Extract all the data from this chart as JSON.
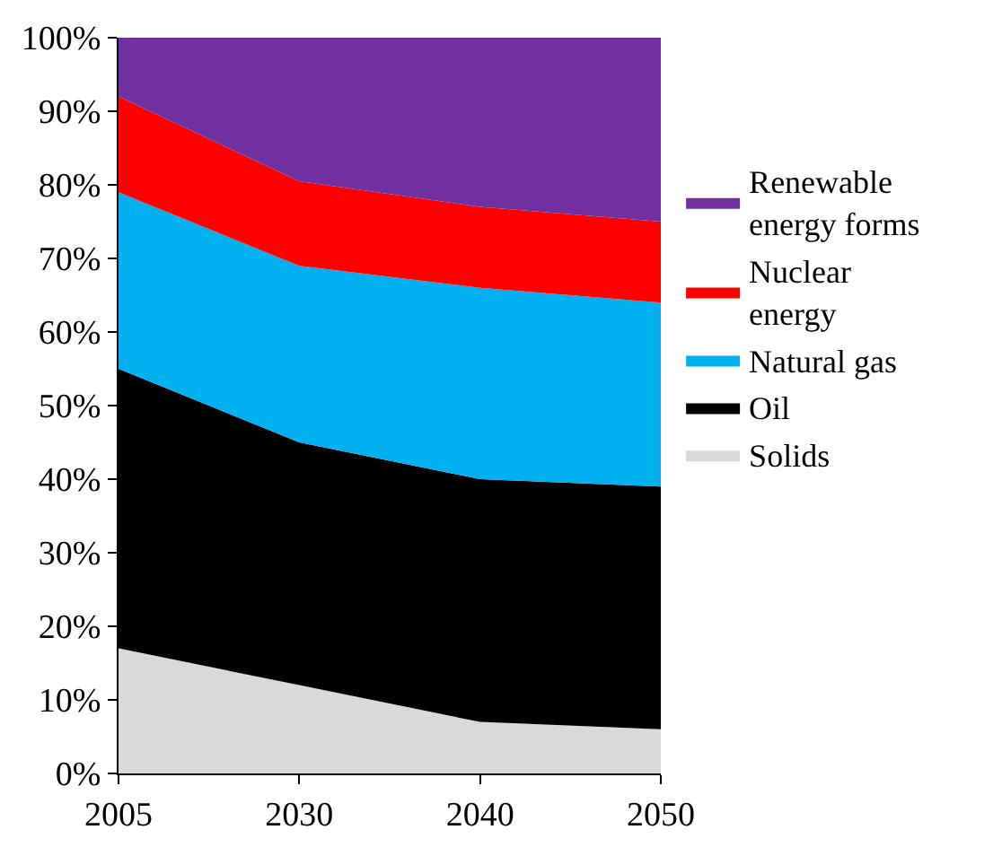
{
  "chart_data": {
    "type": "area",
    "stacked": true,
    "categories": [
      "2005",
      "2030",
      "2040",
      "2050"
    ],
    "series": [
      {
        "name": "Solids",
        "color": "#d9d9d9",
        "values": [
          17,
          12,
          7,
          6
        ]
      },
      {
        "name": "Oil",
        "color": "#000000",
        "values": [
          38,
          33,
          33,
          33
        ]
      },
      {
        "name": "Natural gas",
        "color": "#00b0f0",
        "values": [
          24,
          24,
          26,
          25
        ]
      },
      {
        "name": "Nuclear energy",
        "color": "#ff0000",
        "values": [
          13,
          11.5,
          11,
          11
        ]
      },
      {
        "name": "Renewable energy forms",
        "color": "#7030a0",
        "values": [
          8,
          19.5,
          23,
          25
        ]
      }
    ],
    "ylim": [
      0,
      100
    ],
    "yticks": [
      {
        "value": 0,
        "label": "0%"
      },
      {
        "value": 10,
        "label": "10%"
      },
      {
        "value": 20,
        "label": "20%"
      },
      {
        "value": 30,
        "label": "30%"
      },
      {
        "value": 40,
        "label": "40%"
      },
      {
        "value": 50,
        "label": "50%"
      },
      {
        "value": 60,
        "label": "60%"
      },
      {
        "value": 70,
        "label": "70%"
      },
      {
        "value": 80,
        "label": "80%"
      },
      {
        "value": 90,
        "label": "90%"
      },
      {
        "value": 100,
        "label": "100%"
      }
    ],
    "legend": "right"
  }
}
